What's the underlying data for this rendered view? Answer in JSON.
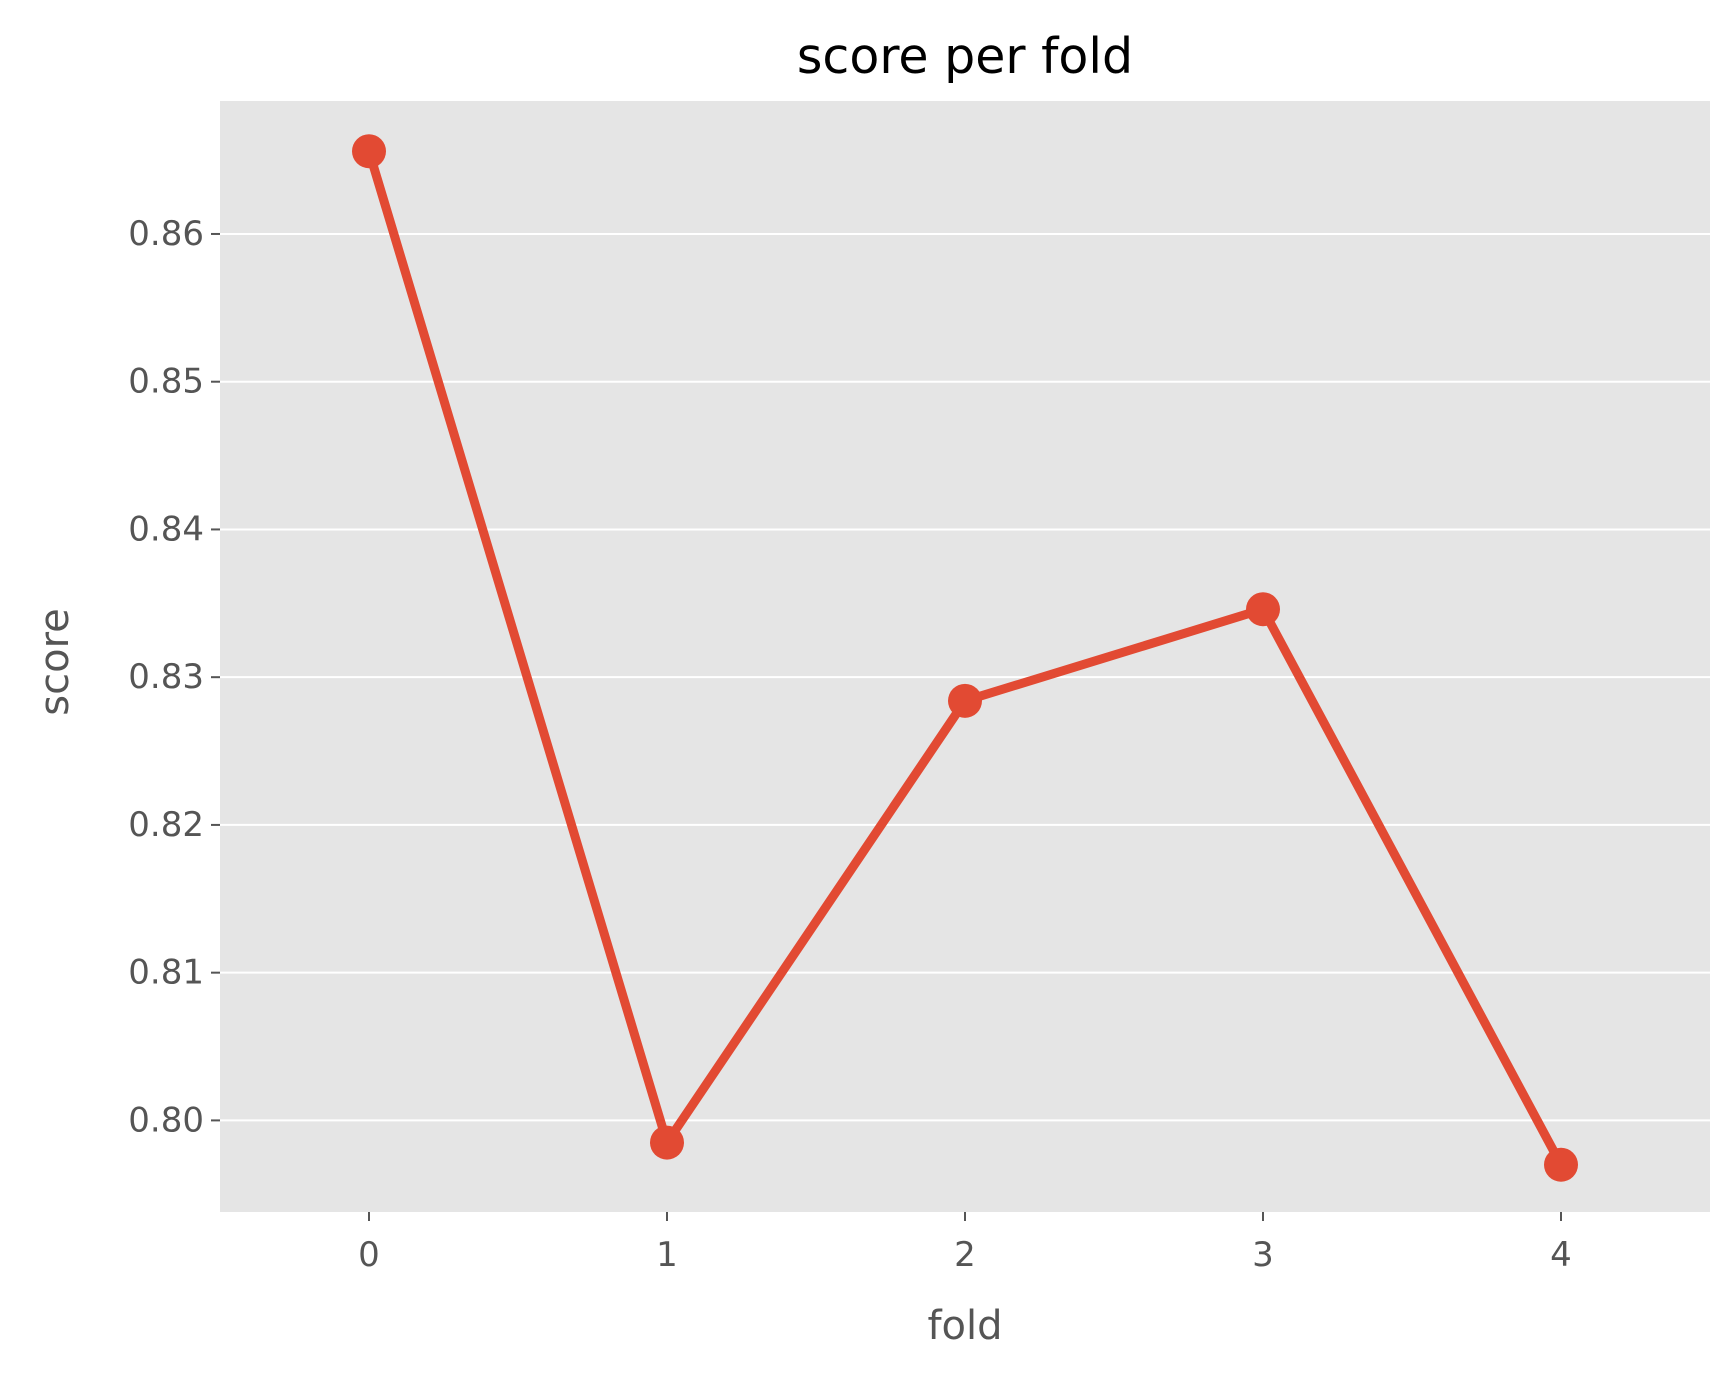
{
  "chart_data": {
    "type": "line",
    "title": "score per fold",
    "xlabel": "fold",
    "ylabel": "score",
    "x": [
      0,
      1,
      2,
      3,
      4
    ],
    "values": [
      0.8656,
      0.7985,
      0.8284,
      0.8346,
      0.797
    ],
    "xlim": [
      -0.5,
      4.5
    ],
    "ylim": [
      0.7938,
      0.869
    ],
    "x_ticks": [
      "0",
      "1",
      "2",
      "3",
      "4"
    ],
    "y_ticks": [
      "0.80",
      "0.81",
      "0.82",
      "0.83",
      "0.84",
      "0.85",
      "0.86"
    ],
    "grid": "y",
    "legend": "none",
    "colors": {
      "series": "#E24A33",
      "plot_background": "#E5E5E5",
      "grid": "#FFFFFF",
      "text": "#555555",
      "title": "#000000"
    }
  }
}
